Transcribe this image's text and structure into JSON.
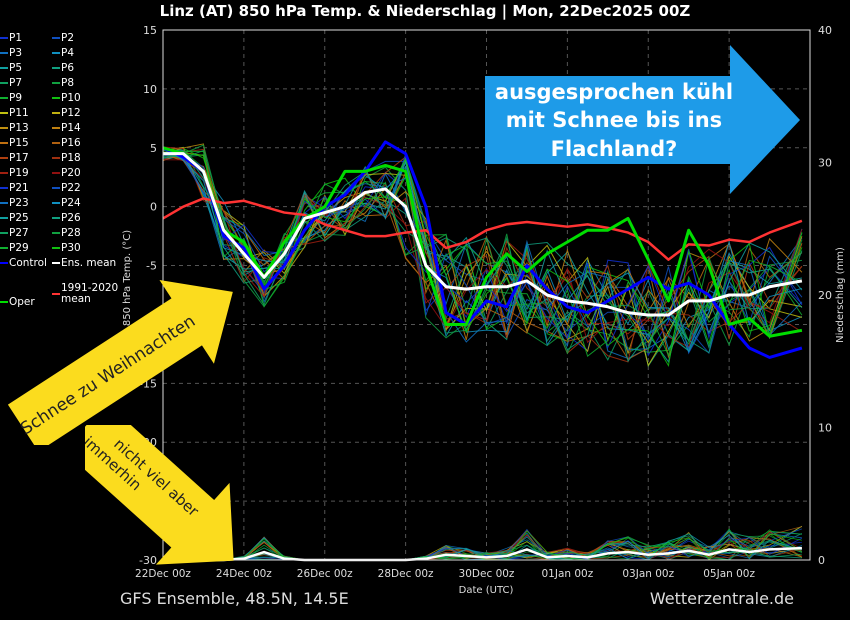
{
  "title": "Linz  (AT)  850 hPa Temp. & Niederschlag | Mon, 22Dec2025 00Z",
  "footer": {
    "left": "GFS Ensemble, 48.5N, 14.5E",
    "right": "Wetterzentrale.de"
  },
  "annotations": {
    "blue_arrow": [
      "ausgesprochen kühl",
      "mit Schnee bis ins",
      "Flachland?"
    ],
    "yellow_arrow_1": "Schnee zu Weihnachten",
    "yellow_arrow_2": [
      "nicht viel aber",
      "immerhin"
    ]
  },
  "legend": [
    {
      "label": "P1",
      "color": "#1030d0"
    },
    {
      "label": "P2",
      "color": "#1050c0"
    },
    {
      "label": "P3",
      "color": "#1070c0"
    },
    {
      "label": "P4",
      "color": "#1090c0"
    },
    {
      "label": "P5",
      "color": "#10a0a0"
    },
    {
      "label": "P6",
      "color": "#10a080"
    },
    {
      "label": "P7",
      "color": "#10a060"
    },
    {
      "label": "P8",
      "color": "#10a040"
    },
    {
      "label": "P9",
      "color": "#10b030"
    },
    {
      "label": "P10",
      "color": "#10c010"
    },
    {
      "label": "P11",
      "color": "#c0c010"
    },
    {
      "label": "P12",
      "color": "#c0b010"
    },
    {
      "label": "P13",
      "color": "#c09010"
    },
    {
      "label": "P14",
      "color": "#c08010"
    },
    {
      "label": "P15",
      "color": "#c07010"
    },
    {
      "label": "P16",
      "color": "#b06010"
    },
    {
      "label": "P17",
      "color": "#b04010"
    },
    {
      "label": "P18",
      "color": "#a03010"
    },
    {
      "label": "P19",
      "color": "#a02010"
    },
    {
      "label": "P20",
      "color": "#901010"
    },
    {
      "label": "P21",
      "color": "#1030d0"
    },
    {
      "label": "P22",
      "color": "#1050c0"
    },
    {
      "label": "P23",
      "color": "#1070c0"
    },
    {
      "label": "P24",
      "color": "#1090c0"
    },
    {
      "label": "P25",
      "color": "#10a0a0"
    },
    {
      "label": "P26",
      "color": "#10a080"
    },
    {
      "label": "P27",
      "color": "#10a060"
    },
    {
      "label": "P28",
      "color": "#10a040"
    },
    {
      "label": "P29",
      "color": "#10b030"
    },
    {
      "label": "P30",
      "color": "#10c010"
    },
    {
      "label": "Control",
      "color": "#0000ff"
    },
    {
      "label": "Ens. mean",
      "color": "#ffffff"
    },
    {
      "label": "1991-2020 mean",
      "color": "#ff3333"
    },
    {
      "label": "Oper",
      "color": "#00dd00"
    }
  ],
  "chart_data": {
    "type": "line",
    "xlabel": "Date (UTC)",
    "ylabel": "850 hPa Temp. (°C)",
    "y2label": "Niederschlag (mm)",
    "ylim": [
      -30,
      15
    ],
    "y2lim": [
      0,
      40
    ],
    "yticks": [
      "15",
      "10",
      "5",
      "0",
      "-5",
      "-10",
      "-15",
      "-20",
      "-25",
      "-30"
    ],
    "y2ticks": [
      "40",
      "30",
      "20",
      "10",
      "0"
    ],
    "xlim_days": [
      0,
      16
    ],
    "xticks": [
      "22Dec 00z",
      "24Dec 00z",
      "26Dec 00z",
      "28Dec 00z",
      "30Dec 00z",
      "01Jan 00z",
      "03Jan 00z",
      "05Jan 00z"
    ],
    "grid": true,
    "x_days": [
      0,
      0.5,
      1,
      1.5,
      2,
      2.5,
      3,
      3.5,
      4,
      4.5,
      5,
      5.5,
      6,
      6.5,
      7,
      7.5,
      8,
      8.5,
      9,
      9.5,
      10,
      10.5,
      11,
      11.5,
      12,
      12.5,
      13,
      13.5,
      14,
      14.5,
      15,
      15.8
    ],
    "series": [
      {
        "name": "Ens. mean",
        "color": "#ffffff",
        "width": 3,
        "values": [
          4.5,
          4.5,
          3,
          -2,
          -4,
          -6,
          -4,
          -1,
          -0.5,
          0,
          1.2,
          1.5,
          0,
          -5,
          -6.8,
          -7,
          -6.8,
          -6.8,
          -6.3,
          -7.5,
          -8,
          -8.2,
          -8.5,
          -9,
          -9.2,
          -9.2,
          -8,
          -8,
          -7.5,
          -7.5,
          -6.8,
          -6.3
        ]
      },
      {
        "name": "1991-2020 mean",
        "color": "#ff3333",
        "width": 2.5,
        "values": [
          -1,
          0,
          0.7,
          0.3,
          0.5,
          0,
          -0.5,
          -0.7,
          -1.5,
          -2,
          -2.5,
          -2.5,
          -2.2,
          -2,
          -3.5,
          -3,
          -2,
          -1.5,
          -1.3,
          -1.5,
          -1.7,
          -1.5,
          -1.8,
          -2.2,
          -3,
          -4.5,
          -3.2,
          -3.3,
          -2.8,
          -3,
          -2.2,
          -1.2
        ]
      },
      {
        "name": "Oper",
        "color": "#00dd00",
        "width": 3,
        "values": [
          5,
          4.5,
          3,
          -2,
          -3,
          -6,
          -3,
          -1,
          0,
          3,
          3,
          3.5,
          3,
          -5,
          -10,
          -10,
          -6,
          -4,
          -5.5,
          -4,
          -3,
          -2,
          -2,
          -1,
          -4.5,
          -8,
          -2,
          -5,
          -10,
          -9.5,
          -11,
          -10.5
        ]
      },
      {
        "name": "Control",
        "color": "#0000ff",
        "width": 3,
        "values": [
          5,
          4.2,
          3,
          -2.5,
          -3.5,
          -7,
          -5,
          -2,
          0,
          1,
          3,
          5.5,
          4.5,
          0,
          -9,
          -10,
          -8,
          -8.5,
          -5,
          -7,
          -8.5,
          -9,
          -8,
          -7,
          -6,
          -7,
          -6.5,
          -7.5,
          -10,
          -12,
          -12.8,
          -12
        ]
      }
    ],
    "precip_mean_mm": [
      0,
      0,
      0,
      0,
      0.1,
      0.6,
      0.1,
      0,
      0,
      0,
      0,
      0,
      0,
      0.1,
      0.4,
      0.3,
      0.2,
      0.3,
      0.8,
      0.2,
      0.3,
      0.2,
      0.5,
      0.6,
      0.4,
      0.5,
      0.7,
      0.4,
      0.8,
      0.6,
      0.8,
      0.9
    ]
  }
}
